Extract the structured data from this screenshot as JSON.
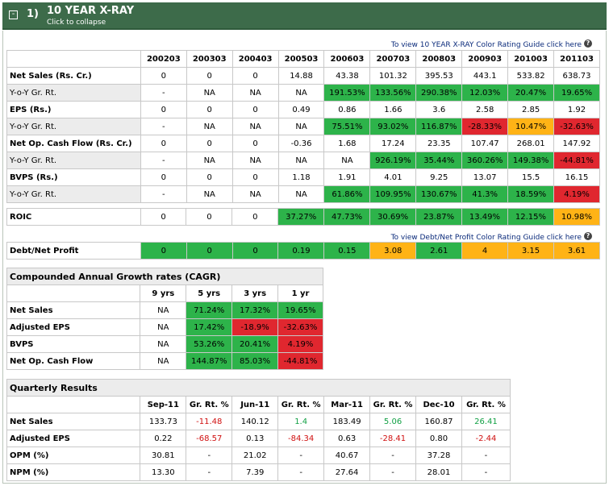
{
  "header": {
    "collapse_glyph": "-",
    "number": "1)",
    "title": "10 YEAR X-RAY",
    "subtitle": "Click to collapse"
  },
  "xray": {
    "guide_text": "To view 10 YEAR X-RAY Color Rating Guide click here",
    "years": [
      "200203",
      "200303",
      "200403",
      "200503",
      "200603",
      "200703",
      "200803",
      "200903",
      "201003",
      "201103"
    ],
    "rows": [
      {
        "label": "Net Sales (Rs. Cr.)",
        "sub": false,
        "cells": [
          {
            "v": "0"
          },
          {
            "v": "0"
          },
          {
            "v": "0"
          },
          {
            "v": "14.88"
          },
          {
            "v": "43.38"
          },
          {
            "v": "101.32"
          },
          {
            "v": "395.53"
          },
          {
            "v": "443.1"
          },
          {
            "v": "533.82"
          },
          {
            "v": "638.73"
          }
        ]
      },
      {
        "label": "Y-o-Y Gr. Rt.",
        "sub": true,
        "cells": [
          {
            "v": "-"
          },
          {
            "v": "NA"
          },
          {
            "v": "NA"
          },
          {
            "v": "NA"
          },
          {
            "v": "191.53%",
            "c": "g"
          },
          {
            "v": "133.56%",
            "c": "g"
          },
          {
            "v": "290.38%",
            "c": "g"
          },
          {
            "v": "12.03%",
            "c": "g"
          },
          {
            "v": "20.47%",
            "c": "g"
          },
          {
            "v": "19.65%",
            "c": "g"
          }
        ]
      },
      {
        "label": "EPS (Rs.)",
        "sub": false,
        "cells": [
          {
            "v": "0"
          },
          {
            "v": "0"
          },
          {
            "v": "0"
          },
          {
            "v": "0.49"
          },
          {
            "v": "0.86"
          },
          {
            "v": "1.66"
          },
          {
            "v": "3.6"
          },
          {
            "v": "2.58"
          },
          {
            "v": "2.85"
          },
          {
            "v": "1.92"
          }
        ]
      },
      {
        "label": "Y-o-Y Gr. Rt.",
        "sub": true,
        "cells": [
          {
            "v": "-"
          },
          {
            "v": "NA"
          },
          {
            "v": "NA"
          },
          {
            "v": "NA"
          },
          {
            "v": "75.51%",
            "c": "g"
          },
          {
            "v": "93.02%",
            "c": "g"
          },
          {
            "v": "116.87%",
            "c": "g"
          },
          {
            "v": "-28.33%",
            "c": "r"
          },
          {
            "v": "10.47%",
            "c": "o"
          },
          {
            "v": "-32.63%",
            "c": "r"
          }
        ]
      },
      {
        "label": "Net Op. Cash Flow (Rs. Cr.)",
        "sub": false,
        "cells": [
          {
            "v": "0"
          },
          {
            "v": "0"
          },
          {
            "v": "0"
          },
          {
            "v": "-0.36"
          },
          {
            "v": "1.68"
          },
          {
            "v": "17.24"
          },
          {
            "v": "23.35"
          },
          {
            "v": "107.47"
          },
          {
            "v": "268.01"
          },
          {
            "v": "147.92"
          }
        ]
      },
      {
        "label": "Y-o-Y Gr. Rt.",
        "sub": true,
        "cells": [
          {
            "v": "-"
          },
          {
            "v": "NA"
          },
          {
            "v": "NA"
          },
          {
            "v": "NA"
          },
          {
            "v": "NA"
          },
          {
            "v": "926.19%",
            "c": "g"
          },
          {
            "v": "35.44%",
            "c": "g"
          },
          {
            "v": "360.26%",
            "c": "g"
          },
          {
            "v": "149.38%",
            "c": "g"
          },
          {
            "v": "-44.81%",
            "c": "r"
          }
        ]
      },
      {
        "label": "BVPS (Rs.)",
        "sub": false,
        "cells": [
          {
            "v": "0"
          },
          {
            "v": "0"
          },
          {
            "v": "0"
          },
          {
            "v": "1.18"
          },
          {
            "v": "1.91"
          },
          {
            "v": "4.01"
          },
          {
            "v": "9.25"
          },
          {
            "v": "13.07"
          },
          {
            "v": "15.5"
          },
          {
            "v": "16.15"
          }
        ]
      },
      {
        "label": "Y-o-Y Gr. Rt.",
        "sub": true,
        "cells": [
          {
            "v": "-"
          },
          {
            "v": "NA"
          },
          {
            "v": "NA"
          },
          {
            "v": "NA"
          },
          {
            "v": "61.86%",
            "c": "g"
          },
          {
            "v": "109.95%",
            "c": "g"
          },
          {
            "v": "130.67%",
            "c": "g"
          },
          {
            "v": "41.3%",
            "c": "g"
          },
          {
            "v": "18.59%",
            "c": "g"
          },
          {
            "v": "4.19%",
            "c": "r"
          }
        ]
      }
    ],
    "roic": {
      "label": "ROIC",
      "cells": [
        {
          "v": "0"
        },
        {
          "v": "0"
        },
        {
          "v": "0"
        },
        {
          "v": "37.27%",
          "c": "g"
        },
        {
          "v": "47.73%",
          "c": "g"
        },
        {
          "v": "30.69%",
          "c": "g"
        },
        {
          "v": "23.87%",
          "c": "g"
        },
        {
          "v": "13.49%",
          "c": "g"
        },
        {
          "v": "12.15%",
          "c": "g"
        },
        {
          "v": "10.98%",
          "c": "o"
        }
      ]
    },
    "debt_guide_text": "To view Debt/Net Profit Color Rating Guide click here",
    "debt": {
      "label": "Debt/Net Profit",
      "cells": [
        {
          "v": "0",
          "c": "g"
        },
        {
          "v": "0",
          "c": "g"
        },
        {
          "v": "0",
          "c": "g"
        },
        {
          "v": "0.19",
          "c": "g"
        },
        {
          "v": "0.15",
          "c": "g"
        },
        {
          "v": "3.08",
          "c": "o"
        },
        {
          "v": "2.61",
          "c": "g"
        },
        {
          "v": "4",
          "c": "o"
        },
        {
          "v": "3.15",
          "c": "o"
        },
        {
          "v": "3.61",
          "c": "o"
        }
      ]
    }
  },
  "cagr": {
    "title": "Compounded Annual Growth rates (CAGR)",
    "columns": [
      "9 yrs",
      "5 yrs",
      "3 yrs",
      "1 yr"
    ],
    "rows": [
      {
        "label": "Net Sales",
        "cells": [
          {
            "v": "NA"
          },
          {
            "v": "71.24%",
            "c": "g"
          },
          {
            "v": "17.32%",
            "c": "g"
          },
          {
            "v": "19.65%",
            "c": "g"
          }
        ]
      },
      {
        "label": "Adjusted EPS",
        "cells": [
          {
            "v": "NA"
          },
          {
            "v": "17.42%",
            "c": "g"
          },
          {
            "v": "-18.9%",
            "c": "r"
          },
          {
            "v": "-32.63%",
            "c": "r"
          }
        ]
      },
      {
        "label": "BVPS",
        "cells": [
          {
            "v": "NA"
          },
          {
            "v": "53.26%",
            "c": "g"
          },
          {
            "v": "20.41%",
            "c": "g"
          },
          {
            "v": "4.19%",
            "c": "r"
          }
        ]
      },
      {
        "label": "Net Op. Cash Flow",
        "cells": [
          {
            "v": "NA"
          },
          {
            "v": "144.87%",
            "c": "g"
          },
          {
            "v": "85.03%",
            "c": "g"
          },
          {
            "v": "-44.81%",
            "c": "r"
          }
        ]
      }
    ]
  },
  "quarterly": {
    "title": "Quarterly Results",
    "columns": [
      "Sep-11",
      "Gr. Rt. %",
      "Jun-11",
      "Gr. Rt. %",
      "Mar-11",
      "Gr. Rt. %",
      "Dec-10",
      "Gr. Rt. %"
    ],
    "rows": [
      {
        "label": "Net Sales",
        "cells": [
          {
            "v": "133.73"
          },
          {
            "v": "-11.48",
            "t": "neg"
          },
          {
            "v": "140.12"
          },
          {
            "v": "1.4",
            "t": "pos"
          },
          {
            "v": "183.49"
          },
          {
            "v": "5.06",
            "t": "pos"
          },
          {
            "v": "160.87"
          },
          {
            "v": "26.41",
            "t": "pos"
          }
        ]
      },
      {
        "label": "Adjusted EPS",
        "cells": [
          {
            "v": "0.22"
          },
          {
            "v": "-68.57",
            "t": "neg"
          },
          {
            "v": "0.13"
          },
          {
            "v": "-84.34",
            "t": "neg"
          },
          {
            "v": "0.63"
          },
          {
            "v": "-28.41",
            "t": "neg"
          },
          {
            "v": "0.80"
          },
          {
            "v": "-2.44",
            "t": "neg"
          }
        ]
      },
      {
        "label": "OPM (%)",
        "cells": [
          {
            "v": "30.81"
          },
          {
            "v": "-"
          },
          {
            "v": "21.02"
          },
          {
            "v": "-"
          },
          {
            "v": "40.67"
          },
          {
            "v": "-"
          },
          {
            "v": "37.28"
          },
          {
            "v": "-"
          }
        ]
      },
      {
        "label": "NPM (%)",
        "cells": [
          {
            "v": "13.30"
          },
          {
            "v": "-"
          },
          {
            "v": "7.39"
          },
          {
            "v": "-"
          },
          {
            "v": "27.64"
          },
          {
            "v": "-"
          },
          {
            "v": "28.01"
          },
          {
            "v": "-"
          }
        ]
      }
    ]
  },
  "colors": {
    "green": "#2db34a",
    "red": "#e0272f",
    "orange": "#ffb316",
    "header_bg": "#3d6b4a"
  },
  "icons": {
    "help": "?"
  }
}
